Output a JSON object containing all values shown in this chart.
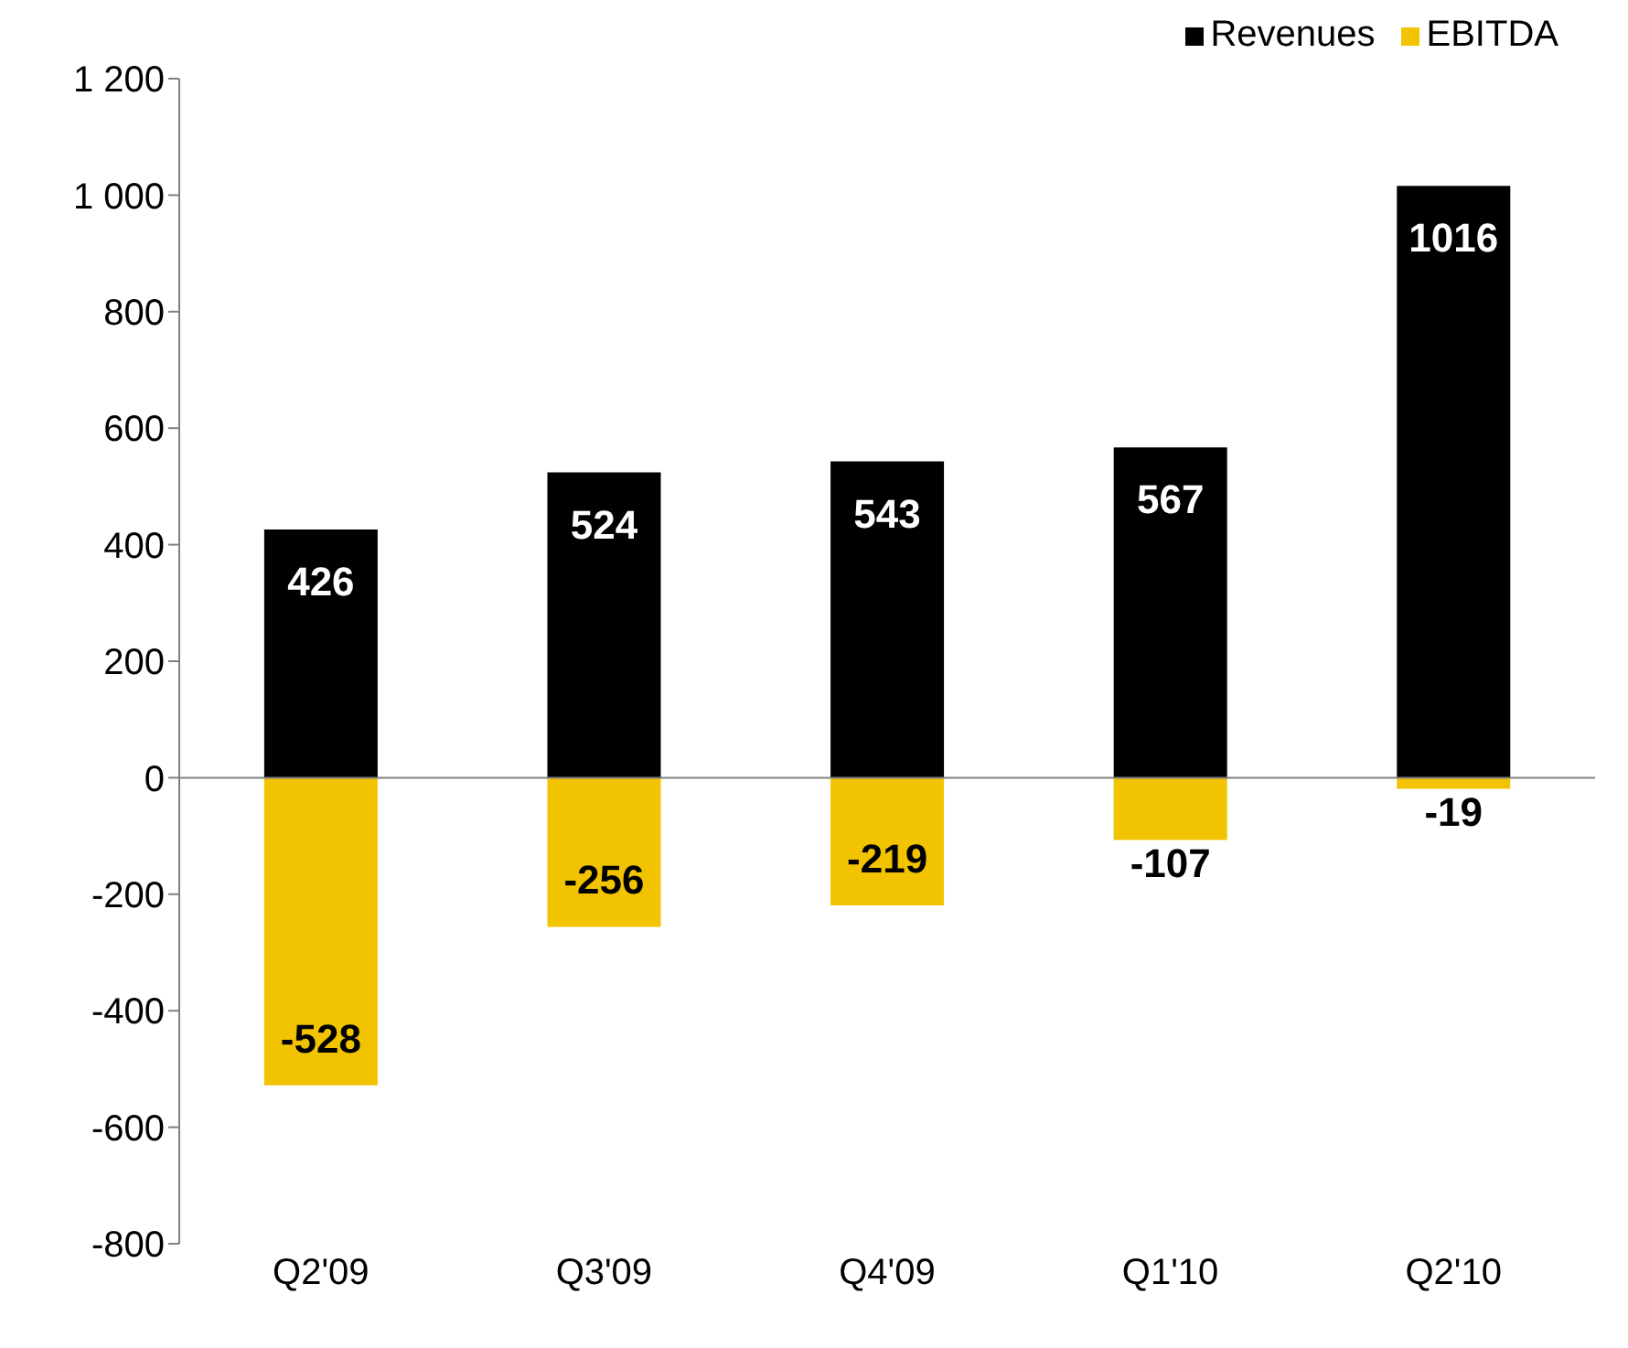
{
  "chart_data": {
    "type": "bar",
    "stacked": true,
    "categories": [
      "Q2'09",
      "Q3'09",
      "Q4'09",
      "Q1'10",
      "Q2'10"
    ],
    "series": [
      {
        "name": "Revenues",
        "color": "#000000",
        "values": [
          426,
          524,
          543,
          567,
          1016
        ]
      },
      {
        "name": "EBITDA",
        "color": "#f2c300",
        "values": [
          -528,
          -256,
          -219,
          -107,
          -19
        ]
      }
    ],
    "ylim": [
      -800,
      1200
    ],
    "yticks": [
      -800,
      -600,
      -400,
      -200,
      0,
      200,
      400,
      600,
      800,
      {
        "value": 1000,
        "label": "1 000"
      },
      {
        "value": 1200,
        "label": "1 200"
      }
    ],
    "legend": "top right",
    "data_labels": true
  }
}
